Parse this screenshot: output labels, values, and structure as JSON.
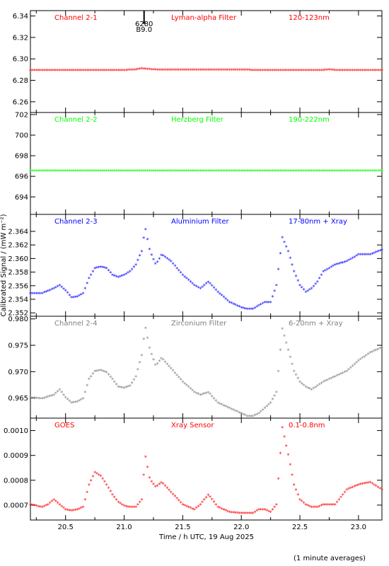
{
  "figure": {
    "ylabel": "Calibrated Signal / (mW m⁻²)",
    "xlabel": "Time / h UTC, 19 Aug 2025",
    "footnote": "(1 minute averages)",
    "x_ticks": [
      "20.5",
      "21.0",
      "21.5",
      "22.0",
      "22.5",
      "23.0"
    ],
    "xlim": [
      20.2,
      23.2
    ]
  },
  "marker": {
    "label_top": "6280",
    "label_bottom": "B9.0",
    "x": 21.17
  },
  "chart_data": [
    {
      "type": "scatter",
      "channel": "Channel 2-1",
      "filter": "Lyman-alpha Filter",
      "band": "120-123nm",
      "color": "#ff0000",
      "ylim": [
        6.25,
        6.345
      ],
      "yticks": [
        "6.26",
        "6.28",
        "6.30",
        "6.32",
        "6.34"
      ],
      "x": [
        20.2,
        21.0,
        21.1,
        21.15,
        21.2,
        21.3,
        22.7,
        22.75,
        22.8,
        23.2
      ],
      "y": [
        6.289,
        6.289,
        6.2895,
        6.2905,
        6.29,
        6.2892,
        6.289,
        6.2895,
        6.289,
        6.289
      ]
    },
    {
      "type": "scatter",
      "channel": "Channel 2-2",
      "filter": "Herzberg Filter",
      "band": "190-222nm",
      "color": "#00ff00",
      "ylim": [
        692.3,
        702.2
      ],
      "yticks": [
        "694",
        "696",
        "698",
        "700",
        "702"
      ],
      "x": [
        20.2,
        23.2
      ],
      "y": [
        696.5,
        696.5
      ]
    },
    {
      "type": "scatter",
      "channel": "Channel 2-3",
      "filter": "Aluminium Filter",
      "band": "17-80nm + Xray",
      "color": "#0000ff",
      "ylim": [
        2.3515,
        2.3665
      ],
      "yticks": [
        "2.352",
        "2.354",
        "2.356",
        "2.358",
        "2.360",
        "2.362",
        "2.364"
      ],
      "x": [
        20.2,
        20.3,
        20.4,
        20.45,
        20.5,
        20.55,
        20.6,
        20.65,
        20.7,
        20.75,
        20.8,
        20.85,
        20.9,
        20.95,
        21.0,
        21.05,
        21.1,
        21.15,
        21.18,
        21.22,
        21.27,
        21.32,
        21.4,
        21.5,
        21.6,
        21.65,
        21.72,
        21.8,
        21.9,
        22.0,
        22.05,
        22.1,
        22.15,
        22.2,
        22.25,
        22.3,
        22.35,
        22.4,
        22.45,
        22.5,
        22.55,
        22.6,
        22.65,
        22.7,
        22.8,
        22.9,
        23.0,
        23.1,
        23.2
      ],
      "y": [
        2.3548,
        2.3548,
        2.3555,
        2.356,
        2.3552,
        2.3542,
        2.3543,
        2.3548,
        2.357,
        2.3585,
        2.3587,
        2.3585,
        2.3575,
        2.3572,
        2.3575,
        2.358,
        2.359,
        2.361,
        2.3645,
        2.361,
        2.359,
        2.3605,
        2.3595,
        2.3575,
        2.356,
        2.3555,
        2.3565,
        2.355,
        2.3535,
        2.3527,
        2.3525,
        2.3525,
        2.353,
        2.3535,
        2.3535,
        2.356,
        2.363,
        2.361,
        2.358,
        2.356,
        2.355,
        2.3555,
        2.3565,
        2.358,
        2.359,
        2.3595,
        2.3605,
        2.3605,
        2.3612
      ]
    },
    {
      "type": "scatter",
      "channel": "Channel 2-4",
      "filter": "Zirconium Filter",
      "band": "6-20nm + Xray",
      "color": "#808080",
      "ylim": [
        0.9612,
        0.9805
      ],
      "yticks": [
        "0.965",
        "0.970",
        "0.975",
        "0.980"
      ],
      "x": [
        20.2,
        20.3,
        20.4,
        20.45,
        20.5,
        20.55,
        20.6,
        20.65,
        20.7,
        20.75,
        20.8,
        20.85,
        20.9,
        20.95,
        21.0,
        21.05,
        21.1,
        21.15,
        21.18,
        21.22,
        21.27,
        21.32,
        21.4,
        21.5,
        21.6,
        21.65,
        21.72,
        21.8,
        21.9,
        22.0,
        22.05,
        22.1,
        22.15,
        22.2,
        22.25,
        22.3,
        22.35,
        22.4,
        22.45,
        22.5,
        22.55,
        22.6,
        22.65,
        22.7,
        22.8,
        22.9,
        23.0,
        23.1,
        23.2
      ],
      "y": [
        0.965,
        0.9648,
        0.9655,
        0.9665,
        0.965,
        0.964,
        0.9642,
        0.9648,
        0.9685,
        0.97,
        0.9702,
        0.9698,
        0.9685,
        0.967,
        0.9668,
        0.9672,
        0.969,
        0.973,
        0.9785,
        0.974,
        0.971,
        0.9725,
        0.9705,
        0.968,
        0.966,
        0.9655,
        0.966,
        0.964,
        0.963,
        0.962,
        0.9615,
        0.9615,
        0.962,
        0.963,
        0.964,
        0.966,
        0.978,
        0.974,
        0.97,
        0.968,
        0.967,
        0.9665,
        0.9672,
        0.968,
        0.969,
        0.97,
        0.972,
        0.9735,
        0.9745
      ]
    },
    {
      "type": "scatter",
      "channel": "GOES",
      "filter": "Xray Sensor",
      "band": "0.1-0.8nm",
      "color": "#ff0000",
      "ylim": [
        0.00064,
        0.00105
      ],
      "yticks": [
        "0.0007",
        "0.0008",
        "0.0009",
        "0.0010"
      ],
      "x": [
        20.2,
        20.3,
        20.35,
        20.4,
        20.45,
        20.5,
        20.55,
        20.6,
        20.65,
        20.7,
        20.75,
        20.8,
        20.85,
        20.9,
        20.95,
        21.0,
        21.05,
        21.1,
        21.15,
        21.18,
        21.22,
        21.27,
        21.32,
        21.4,
        21.5,
        21.6,
        21.65,
        21.72,
        21.8,
        21.9,
        22.0,
        22.05,
        22.1,
        22.15,
        22.2,
        22.25,
        22.3,
        22.35,
        22.4,
        22.45,
        22.5,
        22.55,
        22.6,
        22.65,
        22.7,
        22.8,
        22.9,
        23.0,
        23.1,
        23.2
      ],
      "y": [
        0.0007,
        0.00069,
        0.0007,
        0.00072,
        0.0007,
        0.00068,
        0.000675,
        0.00068,
        0.00069,
        0.00078,
        0.00083,
        0.000815,
        0.00078,
        0.00074,
        0.00071,
        0.000695,
        0.00069,
        0.00069,
        0.00072,
        0.0009,
        0.0008,
        0.00077,
        0.00079,
        0.00075,
        0.0007,
        0.00068,
        0.0007,
        0.00074,
        0.00069,
        0.00067,
        0.000665,
        0.000665,
        0.000665,
        0.00068,
        0.00068,
        0.00067,
        0.0007,
        0.00101,
        0.0009,
        0.00078,
        0.00072,
        0.0007,
        0.00069,
        0.00069,
        0.0007,
        0.0007,
        0.00076,
        0.00078,
        0.00079,
        0.00076
      ]
    }
  ]
}
